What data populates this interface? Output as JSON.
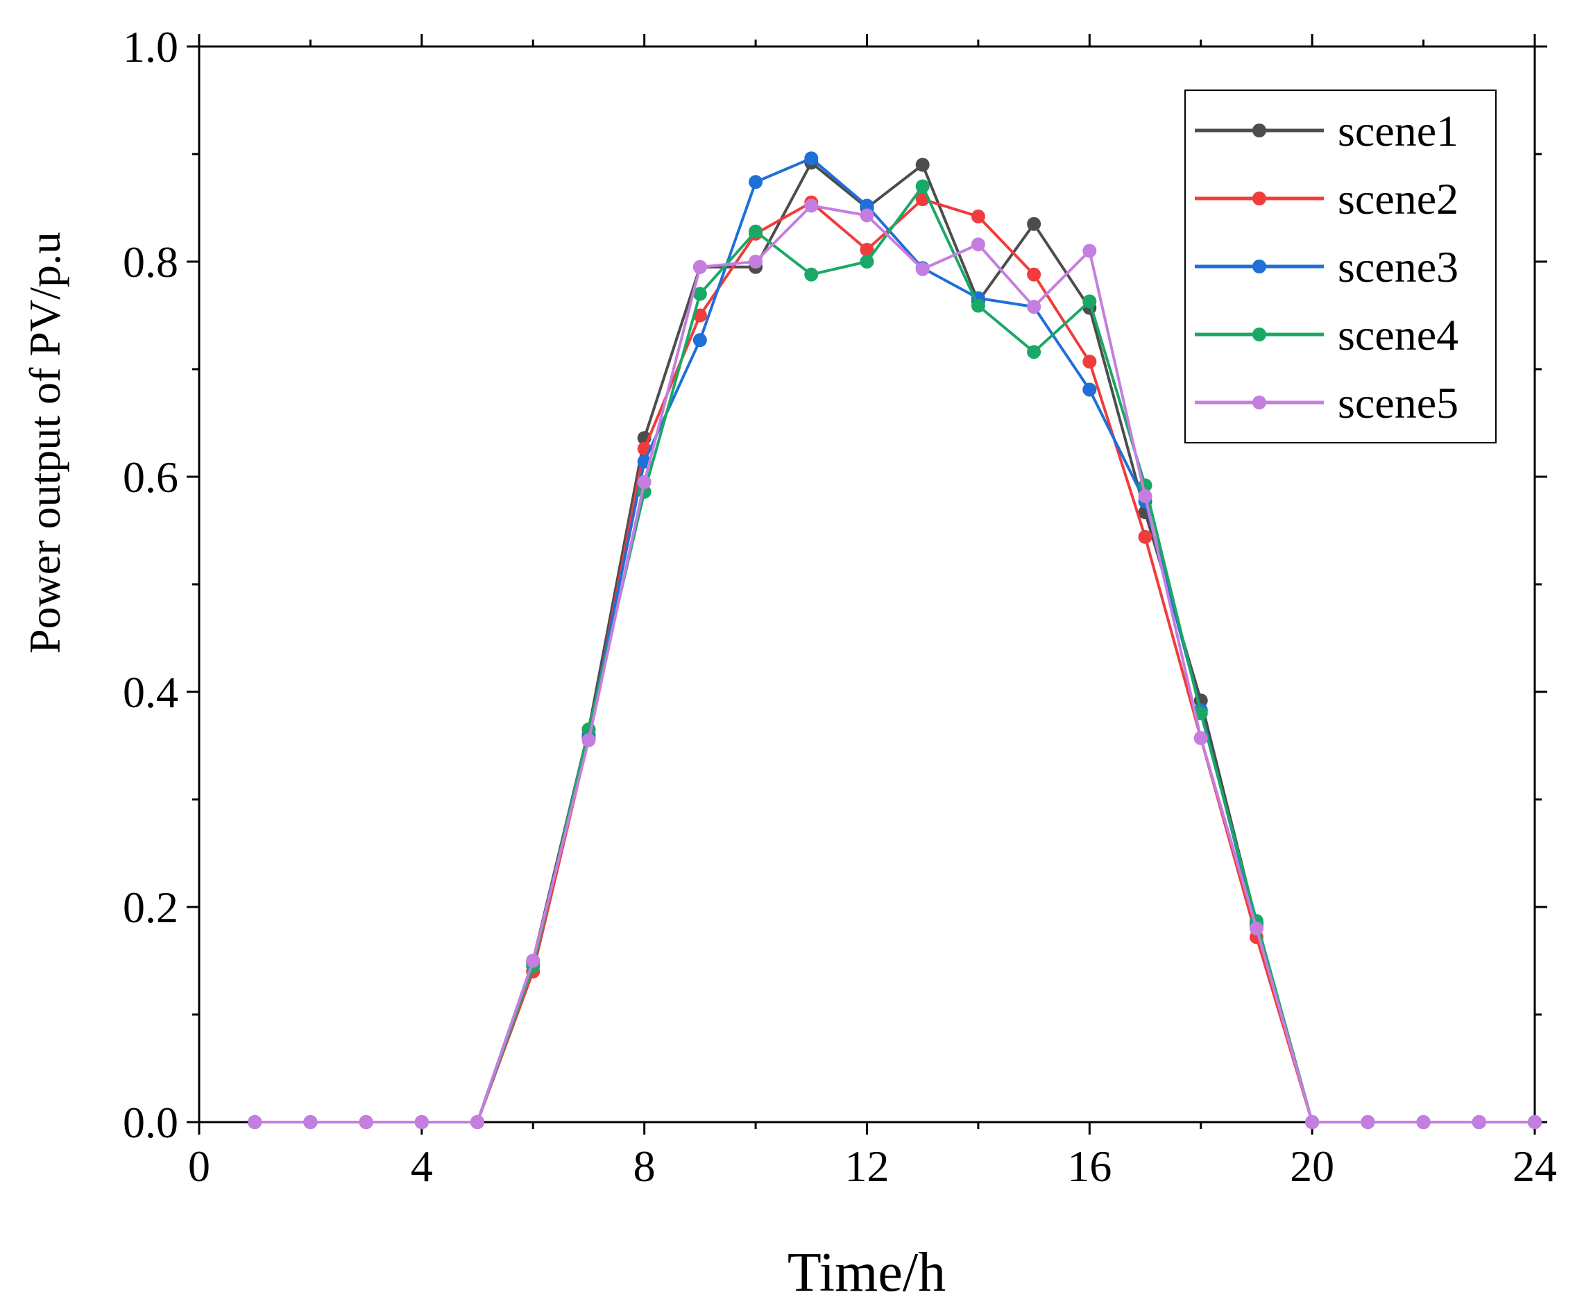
{
  "chart_data": {
    "type": "line",
    "title": "",
    "xlabel": "Time/h",
    "ylabel": "Power output of PV/p.u",
    "xlim": [
      0,
      24
    ],
    "ylim": [
      0,
      1.0
    ],
    "xticks": [
      0,
      4,
      8,
      12,
      16,
      20,
      24
    ],
    "xtick_labels": [
      "0",
      "4",
      "8",
      "12",
      "16",
      "20",
      "24"
    ],
    "yticks": [
      0,
      0.2,
      0.4,
      0.6,
      0.8,
      1.0
    ],
    "ytick_labels": [
      "0.0",
      "0.2",
      "0.4",
      "0.6",
      "0.8",
      "1.0"
    ],
    "grid": false,
    "legend_position": "top-right",
    "x": [
      1,
      2,
      3,
      4,
      5,
      6,
      7,
      8,
      9,
      10,
      11,
      12,
      13,
      14,
      15,
      16,
      17,
      18,
      19,
      20,
      21,
      22,
      23,
      24
    ],
    "series": [
      {
        "name": "scene1",
        "color": "#4d4d4d",
        "values": [
          0,
          0,
          0,
          0,
          0,
          0.15,
          0.365,
          0.636,
          0.795,
          0.795,
          0.892,
          0.85,
          0.89,
          0.763,
          0.835,
          0.757,
          0.567,
          0.392,
          0.185,
          0,
          0,
          0,
          0,
          0
        ]
      },
      {
        "name": "scene2",
        "color": "#f03c3c",
        "values": [
          0,
          0,
          0,
          0,
          0,
          0.14,
          0.357,
          0.626,
          0.75,
          0.826,
          0.855,
          0.811,
          0.858,
          0.842,
          0.788,
          0.707,
          0.544,
          0.357,
          0.172,
          0,
          0,
          0,
          0,
          0
        ]
      },
      {
        "name": "scene3",
        "color": "#1f6fd8",
        "values": [
          0,
          0,
          0,
          0,
          0,
          0.148,
          0.36,
          0.614,
          0.727,
          0.874,
          0.896,
          0.852,
          0.794,
          0.766,
          0.758,
          0.681,
          0.577,
          0.383,
          0.182,
          0,
          0,
          0,
          0,
          0
        ]
      },
      {
        "name": "scene4",
        "color": "#1aa866",
        "values": [
          0,
          0,
          0,
          0,
          0,
          0.145,
          0.365,
          0.586,
          0.77,
          0.828,
          0.788,
          0.8,
          0.87,
          0.759,
          0.716,
          0.763,
          0.592,
          0.38,
          0.187,
          0,
          0,
          0,
          0,
          0
        ]
      },
      {
        "name": "scene5",
        "color": "#c57ee0",
        "values": [
          0,
          0,
          0,
          0,
          0,
          0.15,
          0.355,
          0.595,
          0.795,
          0.8,
          0.852,
          0.843,
          0.793,
          0.816,
          0.758,
          0.81,
          0.582,
          0.357,
          0.18,
          0,
          0,
          0,
          0,
          0
        ]
      }
    ]
  }
}
